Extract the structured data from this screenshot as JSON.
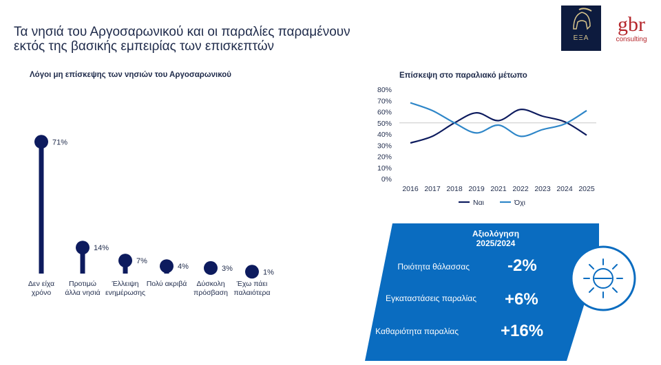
{
  "title": {
    "line1": "Τα νησιά του Αργοσαρωνικού και οι παραλίες παραμένουν",
    "line2": "εκτός της βασικής εμπειρίας των επισκεπτών"
  },
  "logos": {
    "exa_text": "ΕΞΑ",
    "gbr_text": "gbr",
    "gbr_sub": "consulting"
  },
  "colors": {
    "dark_navy": "#0d1b5e",
    "light_blue": "#2e86c8",
    "panel_blue": "#0a6cc0"
  },
  "chart_data": [
    {
      "type": "bar",
      "style": "lollipop",
      "title": "Λόγοι μη επίσκεψης των νησιών του Αργοσαρωνικού",
      "categories": [
        [
          "Δεν είχα",
          "χρόνο"
        ],
        [
          "Προτιμώ",
          "άλλα νησιά"
        ],
        [
          "Έλλειψη",
          "ενημέρωσης"
        ],
        [
          "Πολύ ακριβά"
        ],
        [
          "Δύσκολη",
          "πρόσβαση"
        ],
        [
          "Έχω πάει",
          "παλαιότερα"
        ]
      ],
      "values": [
        71,
        14,
        7,
        4,
        3,
        1
      ],
      "value_labels": [
        "71%",
        "14%",
        "7%",
        "4%",
        "3%",
        "1%"
      ],
      "unit": "%",
      "ylim": [
        0,
        80
      ]
    },
    {
      "type": "line",
      "title": "Επίσκεψη στο παραλιακό μέτωπο",
      "x": [
        "2016",
        "2017",
        "2018",
        "2019",
        "2021",
        "2022",
        "2023",
        "2024",
        "2025"
      ],
      "yticks": [
        "0%",
        "10%",
        "20%",
        "30%",
        "40%",
        "50%",
        "60%",
        "70%",
        "80%"
      ],
      "ylim": [
        0,
        80
      ],
      "grid": "50% line only",
      "series": [
        {
          "name": "Ναι",
          "color": "#0d1b5e",
          "values": [
            32,
            38,
            50,
            59,
            52,
            62,
            56,
            51,
            39
          ]
        },
        {
          "name": "Όχι",
          "color": "#2e86c8",
          "values": [
            68,
            61,
            50,
            41,
            48,
            38,
            44,
            49,
            61
          ]
        }
      ],
      "legend": "bottom"
    }
  ],
  "rating": {
    "title_line1": "Αξιολόγηση",
    "title_line2": "2025/2024",
    "items": [
      {
        "label": "Ποιότητα θάλασσας",
        "value": "-2%"
      },
      {
        "label": "Εγκαταστάσεις παραλίας",
        "value": "+6%"
      },
      {
        "label": "Καθαριότητα παραλίας",
        "value": "+16%"
      }
    ],
    "icon": "sun-icon"
  }
}
